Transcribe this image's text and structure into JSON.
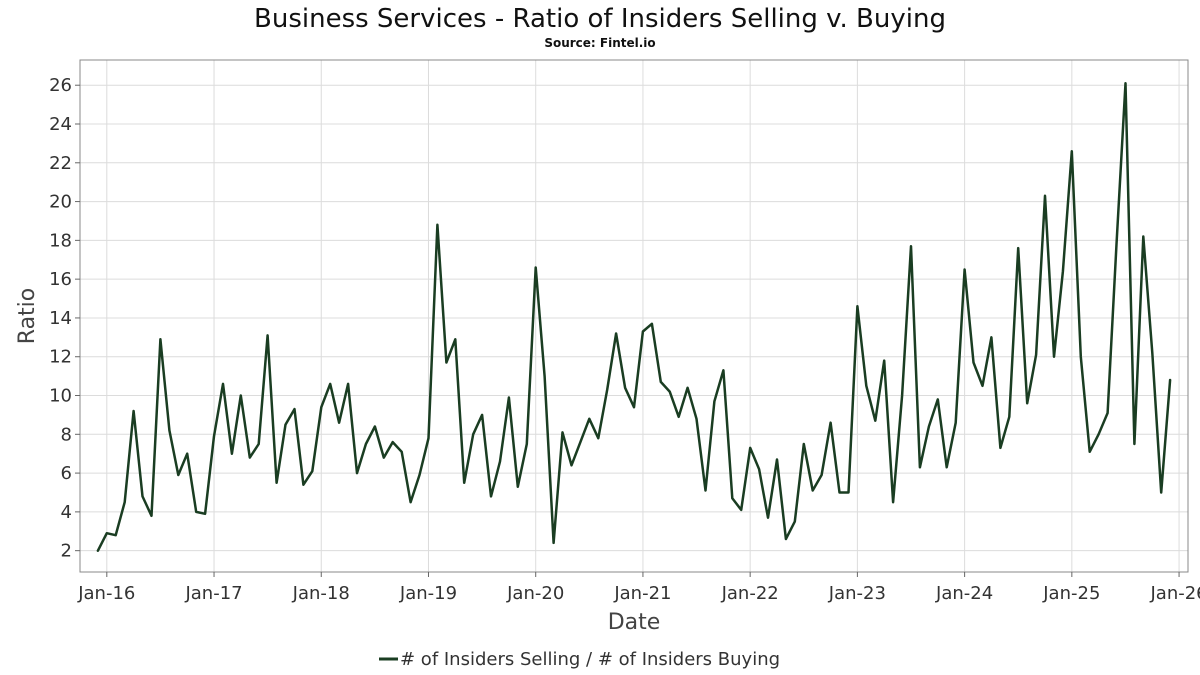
{
  "chart_data": {
    "type": "line",
    "title": "Business Services - Ratio of Insiders Selling v. Buying",
    "subtitle": "Source: Fintel.io",
    "xlabel": "Date",
    "ylabel": "Ratio",
    "x_start": "2015-12",
    "x_ticks": [
      "Jan-16",
      "Jan-17",
      "Jan-18",
      "Jan-19",
      "Jan-20",
      "Jan-21",
      "Jan-22",
      "Jan-23",
      "Jan-24",
      "Jan-25",
      "Jan-26"
    ],
    "xlim": [
      "2015-10",
      "2026-02"
    ],
    "y_ticks": [
      2,
      4,
      6,
      8,
      10,
      12,
      14,
      16,
      18,
      20,
      22,
      24,
      26
    ],
    "ylim": [
      0.9,
      27.3
    ],
    "grid": true,
    "legend_position": "bottom-center",
    "series": [
      {
        "name": "# of Insiders Selling / # of Insiders Buying",
        "color": "#1a3d22",
        "values": [
          2.0,
          2.9,
          2.8,
          4.5,
          9.2,
          4.8,
          3.8,
          12.9,
          8.2,
          5.9,
          7.0,
          4.0,
          3.9,
          7.9,
          10.6,
          7.0,
          10.0,
          6.8,
          7.5,
          13.1,
          5.5,
          8.5,
          9.3,
          5.4,
          6.1,
          9.4,
          10.6,
          8.6,
          10.6,
          6.0,
          7.5,
          8.4,
          6.8,
          7.6,
          7.1,
          4.5,
          5.9,
          7.8,
          18.8,
          11.7,
          12.9,
          5.5,
          8.0,
          9.0,
          4.8,
          6.6,
          9.9,
          5.3,
          7.5,
          16.6,
          11.0,
          2.4,
          8.1,
          6.4,
          7.6,
          8.8,
          7.8,
          10.3,
          13.2,
          10.4,
          9.4,
          13.3,
          13.7,
          10.7,
          10.2,
          8.9,
          10.4,
          8.8,
          5.1,
          9.7,
          11.3,
          4.7,
          4.1,
          7.3,
          6.2,
          3.7,
          6.7,
          2.6,
          3.5,
          7.5,
          5.1,
          5.9,
          8.6,
          5.0,
          5.0,
          14.6,
          10.5,
          8.7,
          11.8,
          4.5,
          10.0,
          17.7,
          6.3,
          8.4,
          9.8,
          6.3,
          8.6,
          16.5,
          11.7,
          10.5,
          13.0,
          7.3,
          8.9,
          17.6,
          9.6,
          12.1,
          20.3,
          12.0,
          16.4,
          22.6,
          12.0,
          7.1,
          8.0,
          9.1,
          17.8,
          26.1,
          7.5,
          18.2,
          12.2,
          5.0,
          10.8
        ]
      }
    ]
  }
}
